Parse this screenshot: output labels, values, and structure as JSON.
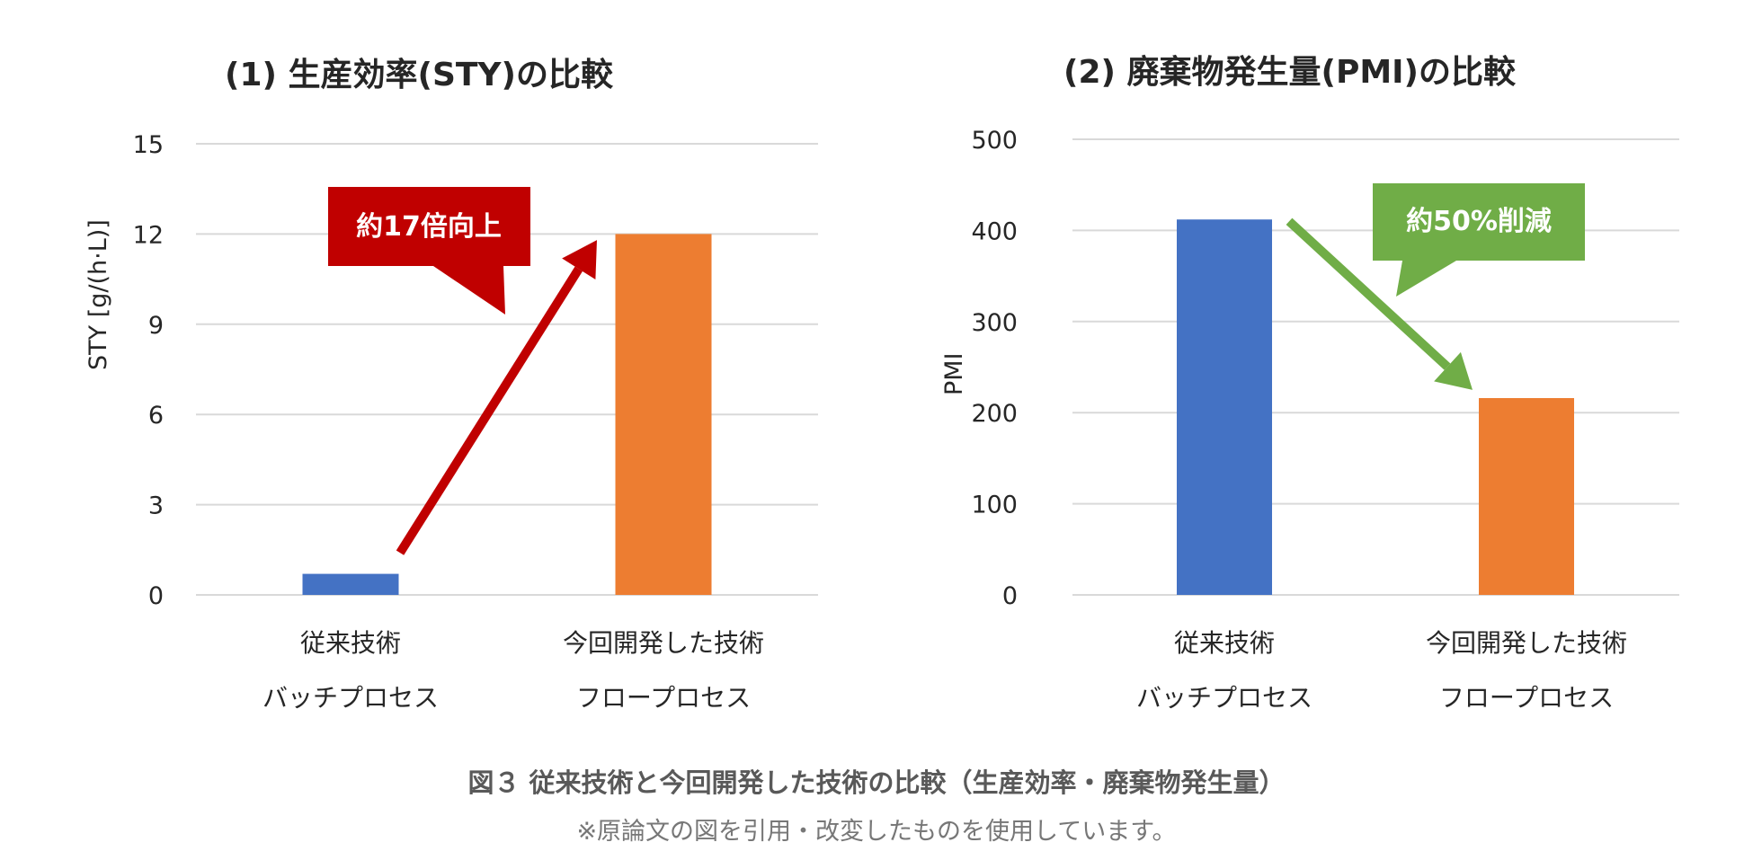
{
  "chart_data": [
    {
      "type": "bar",
      "title": "(1) 生産効率(STY)の比較",
      "ylabel": "STY [g/(h·L)]",
      "xlabel": "",
      "ylim": [
        0,
        15
      ],
      "yticks": [
        0,
        3,
        6,
        9,
        12,
        15
      ],
      "grid": true,
      "categories": [
        [
          "従来技術",
          "バッチプロセス"
        ],
        [
          "今回開発した技術",
          "フロープロセス"
        ]
      ],
      "values": [
        0.7,
        12
      ],
      "colors": [
        "#4472C4",
        "#ED7D31"
      ],
      "annotation": {
        "text": "約17倍向上",
        "color": "#C00000",
        "direction": "up",
        "from_value": 1.4,
        "to_value": 11.8
      }
    },
    {
      "type": "bar",
      "title": "(2) 廃棄物発生量(PMI)の比較",
      "ylabel": "PMI",
      "xlabel": "",
      "ylim": [
        0,
        500
      ],
      "yticks": [
        0,
        100,
        200,
        300,
        400,
        500
      ],
      "grid": true,
      "categories": [
        [
          "従来技術",
          "バッチプロセス"
        ],
        [
          "今回開発した技術",
          "フロープロセス"
        ]
      ],
      "values": [
        412,
        216
      ],
      "colors": [
        "#4472C4",
        "#ED7D31"
      ],
      "annotation": {
        "text": "約50%削減",
        "color": "#70AD47",
        "direction": "down",
        "from_value": 410,
        "to_value": 225
      }
    }
  ],
  "caption": {
    "main": "図３ 従来技術と今回開発した技術の比較（生産効率・廃棄物発生量）",
    "note": "※原論文の図を引用・改変したものを使用しています。"
  }
}
